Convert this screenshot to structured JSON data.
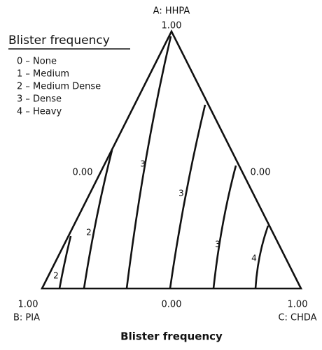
{
  "axes": {
    "top": {
      "name": "A: HHPA",
      "value": "1.00"
    },
    "left_mid": "0.00",
    "right_mid": "0.00",
    "bottom_left": {
      "value": "1.00",
      "name": "B: PIA"
    },
    "bottom_mid": "0.00",
    "bottom_right": {
      "value": "1.00",
      "name": "C: CHDA"
    }
  },
  "title": "Blister frequency",
  "legend": {
    "title": "Blister frequency",
    "items": [
      "0 – None",
      "1 – Medium",
      "2 – Medium Dense",
      "3 – Dense",
      "4 – Heavy"
    ]
  },
  "contour_labels": [
    "2",
    "2",
    "3",
    "3",
    "3",
    "4"
  ]
}
